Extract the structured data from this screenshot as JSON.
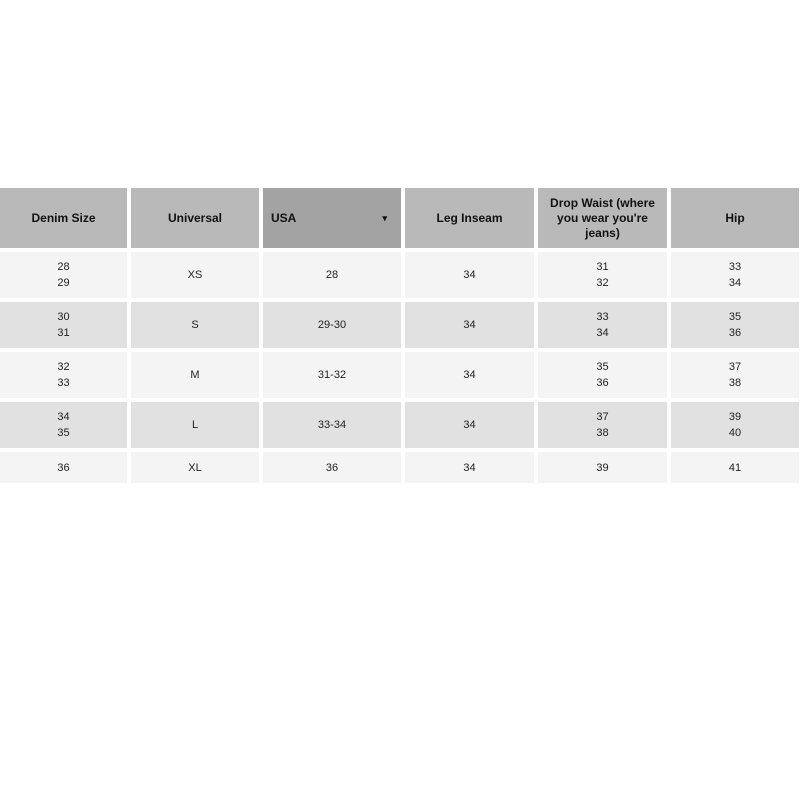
{
  "table": {
    "headers": [
      "Denim Size",
      "Universal",
      "USA",
      "Leg Inseam",
      "Drop Waist (where you wear you're jeans)",
      "Hip"
    ],
    "sorted_column": 2,
    "sort_icon": "caret-down-icon",
    "rows": [
      [
        [
          "28",
          "29"
        ],
        [
          "XS"
        ],
        [
          "28"
        ],
        [
          "34"
        ],
        [
          "31",
          "32"
        ],
        [
          "33",
          "34"
        ]
      ],
      [
        [
          "30",
          "31"
        ],
        [
          "S"
        ],
        [
          "29-30"
        ],
        [
          "34"
        ],
        [
          "33",
          "34"
        ],
        [
          "35",
          "36"
        ]
      ],
      [
        [
          "32",
          "33"
        ],
        [
          "M"
        ],
        [
          "31-32"
        ],
        [
          "34"
        ],
        [
          "35",
          "36"
        ],
        [
          "37",
          "38"
        ]
      ],
      [
        [
          "34",
          "35"
        ],
        [
          "L"
        ],
        [
          "33-34"
        ],
        [
          "34"
        ],
        [
          "37",
          "38"
        ],
        [
          "39",
          "40"
        ]
      ],
      [
        [
          "36"
        ],
        [
          "XL"
        ],
        [
          "36"
        ],
        [
          "34"
        ],
        [
          "39"
        ],
        [
          "41"
        ]
      ]
    ]
  },
  "colors": {
    "header": "#b9b9b9",
    "header_sorted": "#a3a3a3",
    "row_light": "#f4f4f4",
    "row_dark": "#e1e1e1"
  }
}
